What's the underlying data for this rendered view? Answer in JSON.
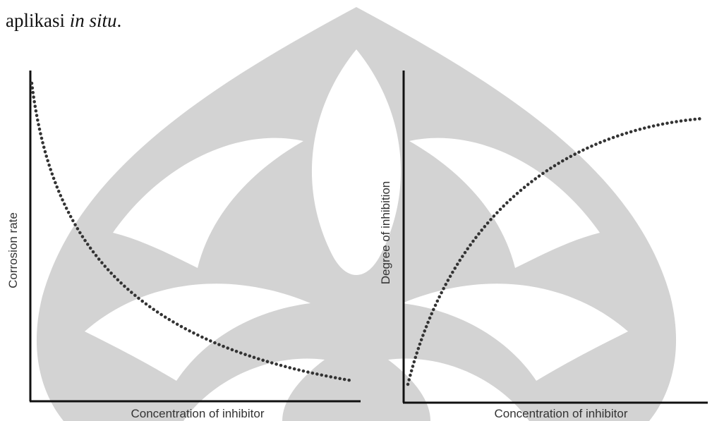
{
  "text": {
    "before": "aplikasi ",
    "italic": "in situ",
    "after": "."
  },
  "figures": [
    {
      "y_label": "Corrosion rate",
      "x_label": "Concentration of inhibitor"
    },
    {
      "y_label": "Degree of inhibition",
      "x_label": "Concentration of inhibitor"
    }
  ]
}
